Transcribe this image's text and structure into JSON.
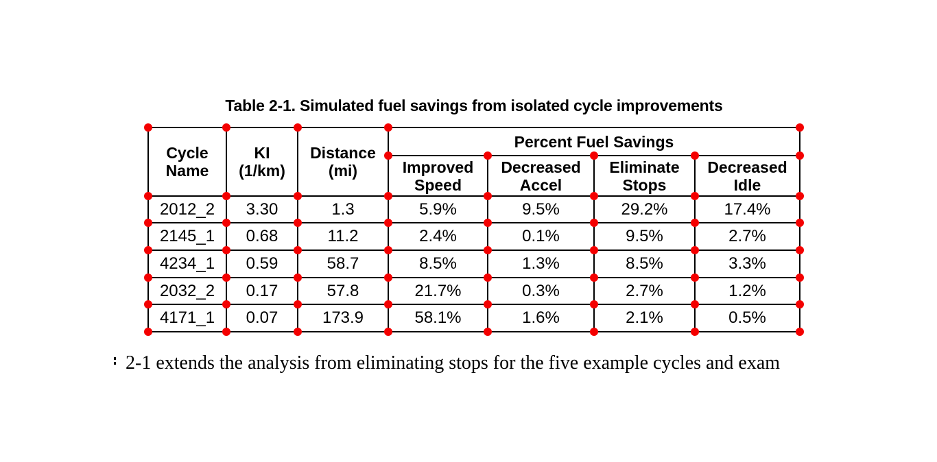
{
  "title": "Table 2-1. Simulated fuel savings from isolated cycle improvements",
  "table": {
    "header": {
      "cycle_name": "Cycle\nName",
      "ki": "KI\n(1/km)",
      "distance": "Distance\n(mi)",
      "percent_fuel_savings": "Percent Fuel Savings",
      "sub": [
        "Improved\nSpeed",
        "Decreased\nAccel",
        "Eliminate\nStops",
        "Decreased\nIdle"
      ]
    },
    "rows": [
      {
        "cycle": "2012_2",
        "ki": "3.30",
        "distance": "1.3",
        "improved_speed": "5.9%",
        "decreased_accel": "9.5%",
        "eliminate_stops": "29.2%",
        "decreased_idle": "17.4%"
      },
      {
        "cycle": "2145_1",
        "ki": "0.68",
        "distance": "11.2",
        "improved_speed": "2.4%",
        "decreased_accel": "0.1%",
        "eliminate_stops": "9.5%",
        "decreased_idle": "2.7%"
      },
      {
        "cycle": "4234_1",
        "ki": "0.59",
        "distance": "58.7",
        "improved_speed": "8.5%",
        "decreased_accel": "1.3%",
        "eliminate_stops": "8.5%",
        "decreased_idle": "3.3%"
      },
      {
        "cycle": "2032_2",
        "ki": "0.17",
        "distance": "57.8",
        "improved_speed": "21.7%",
        "decreased_accel": "0.3%",
        "eliminate_stops": "2.7%",
        "decreased_idle": "1.2%"
      },
      {
        "cycle": "4171_1",
        "ki": "0.07",
        "distance": "173.9",
        "improved_speed": "58.1%",
        "decreased_accel": "1.6%",
        "eliminate_stops": "2.1%",
        "decreased_idle": "0.5%"
      }
    ]
  },
  "body_text": "2-1 extends the analysis from eliminating stops for the five example cycles and exam",
  "colors": {
    "background": "#ffffff",
    "text": "#000000",
    "table_border": "#000000",
    "grid_dot": "#f40000"
  }
}
